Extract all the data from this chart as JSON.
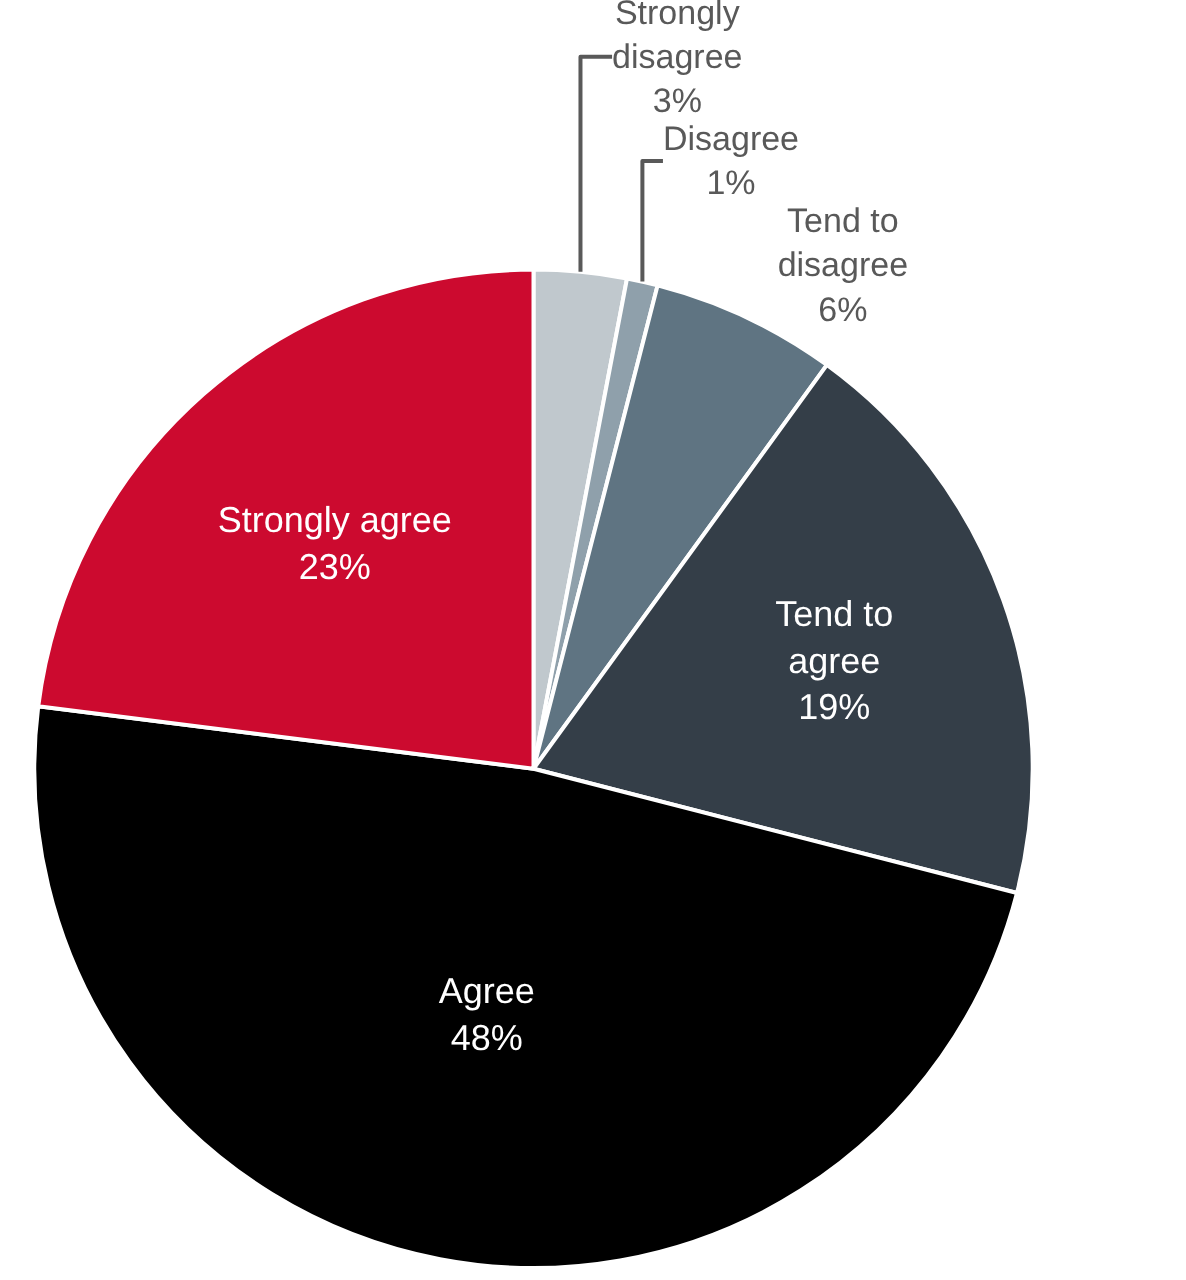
{
  "chart_data": {
    "type": "pie",
    "categories": [
      "Strongly disagree",
      "Disagree",
      "Tend to disagree",
      "Tend to agree",
      "Agree",
      "Strongly agree"
    ],
    "values": [
      3,
      1,
      6,
      19,
      48,
      23
    ],
    "value_labels": [
      "3%",
      "1%",
      "6%",
      "19%",
      "48%",
      "23%"
    ],
    "colors": [
      "#c0c8cd",
      "#8fa0ab",
      "#5f7482",
      "#343e48",
      "#000000",
      "#cc0a2f"
    ],
    "legend": false
  }
}
